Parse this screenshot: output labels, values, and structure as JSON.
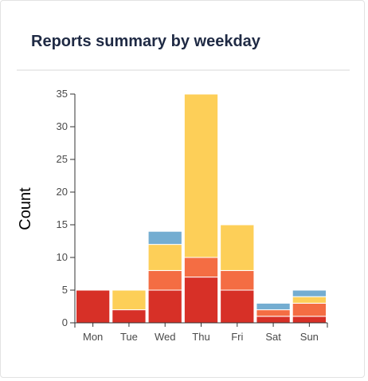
{
  "card": {
    "title": "Reports summary by weekday"
  },
  "chart_data": {
    "type": "bar",
    "stacked": true,
    "title": "Reports summary by weekday",
    "xlabel": "",
    "ylabel": "Count",
    "ylim": [
      0,
      35
    ],
    "yticks": [
      0,
      5,
      10,
      15,
      20,
      25,
      30,
      35
    ],
    "grid": false,
    "legend": "none",
    "categories": [
      "Mon",
      "Tue",
      "Wed",
      "Thu",
      "Fri",
      "Sat",
      "Sun"
    ],
    "series": [
      {
        "color": "#d73027",
        "values": [
          5,
          2,
          5,
          7,
          5,
          1,
          1
        ]
      },
      {
        "color": "#f46d43",
        "values": [
          0,
          0,
          3,
          3,
          3,
          1,
          2
        ]
      },
      {
        "color": "#fdcf58",
        "values": [
          0,
          3,
          4,
          25,
          7,
          0,
          1
        ]
      },
      {
        "color": "#74add1",
        "values": [
          0,
          0,
          2,
          0,
          0,
          1,
          1
        ]
      }
    ]
  }
}
